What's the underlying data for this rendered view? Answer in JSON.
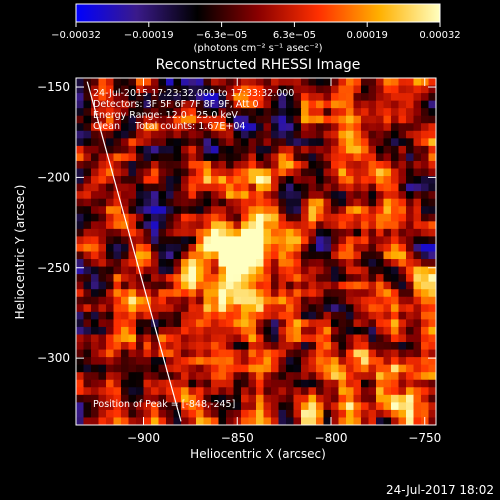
{
  "chart_data": {
    "type": "heatmap",
    "title": "Reconstructed RHESSI Image",
    "xlabel": "Heliocentric X (arcsec)",
    "ylabel": "Heliocentric Y (arcsec)",
    "xlim": [
      -936,
      -744
    ],
    "ylim": [
      -337,
      -145
    ],
    "x_ticks": [
      -900,
      -850,
      -800,
      -750
    ],
    "x_tick_labels": [
      "−900",
      "−850",
      "−800",
      "−750"
    ],
    "y_ticks": [
      -150,
      -200,
      -250,
      -300
    ],
    "y_tick_labels": [
      "−150",
      "−200",
      "−250",
      "−300"
    ],
    "colorbar": {
      "min": -0.00032,
      "max": 0.00032,
      "tick_labels": [
        "−0.00032",
        "−0.00019",
        "−6.3e−05",
        "6.3e−05",
        "0.00019",
        "0.00032"
      ],
      "unit_label": "(photons cm⁻² s⁻¹ asec⁻²)",
      "colormap": [
        "#0000ff",
        "#3a1a8a",
        "#000000",
        "#8a0000",
        "#ff3000",
        "#ffb000",
        "#ffffc0"
      ]
    },
    "peak": {
      "x": -848,
      "y": -245
    },
    "limb_line": [
      [
        -930,
        -147
      ],
      [
        -880,
        -335
      ]
    ],
    "annotations": [
      "24-Jul-2015 17:23:32.000 to 17:33:32.000",
      "Detectors: 3F 5F 6F 7F 8F 9F, Att 0",
      "Energy Range: 12.0 - 25.0 keV",
      "Clean     Total counts: 1.67E+04"
    ],
    "peak_label": "Position of Peak = [-848,-245]"
  },
  "footer": {
    "timestamp": "24-Jul-2017 18:02"
  }
}
